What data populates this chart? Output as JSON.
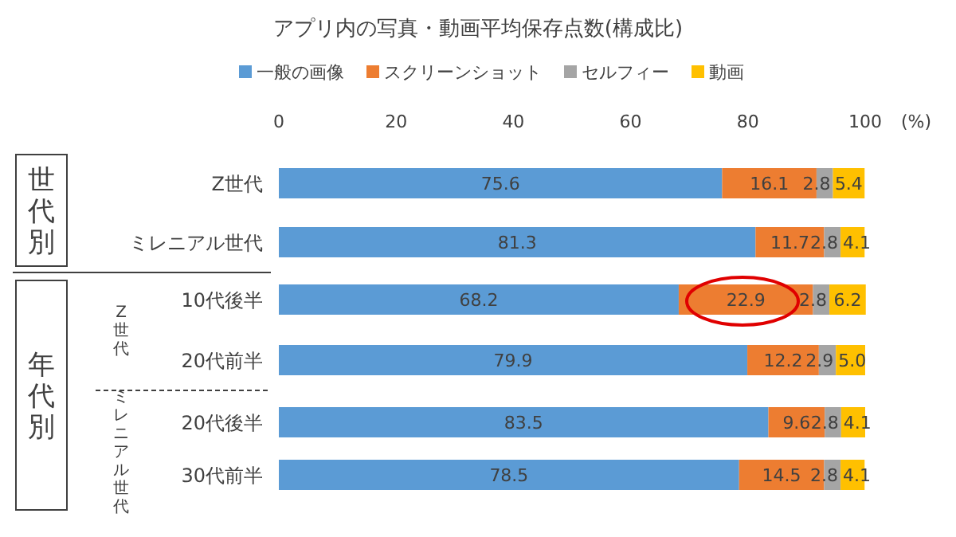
{
  "chart_data": {
    "type": "bar",
    "orientation": "horizontal",
    "stacked": true,
    "title": "アプリ内の写真・動画平均保存点数(構成比)",
    "xlabel": "(%)",
    "categories": [
      "Z世代",
      "ミレニアル世代",
      "10代後半",
      "20代前半",
      "20代後半",
      "30代前半"
    ],
    "xlim": [
      0,
      100
    ],
    "xticks": [
      0,
      20,
      40,
      60,
      80,
      100
    ],
    "legend": "top",
    "grid": false,
    "annotations": [
      "世代別",
      "年代別",
      "Z世代",
      "ミレニアル世代"
    ],
    "series": [
      {
        "name": "一般の画像",
        "color": "#5b9bd5",
        "values": [
          75.6,
          81.3,
          68.2,
          79.9,
          83.5,
          78.5
        ],
        "value_labels": [
          "75.6",
          "81.3",
          "68.2",
          "79.9",
          "83.5",
          "78.5"
        ]
      },
      {
        "name": "スクリーンショット",
        "color": "#ed7d31",
        "values": [
          16.1,
          11.7,
          22.9,
          12.2,
          9.6,
          14.5
        ],
        "value_labels": [
          "16.1",
          "11.7",
          "22.9",
          "12.2",
          "9.6",
          "14.5"
        ]
      },
      {
        "name": "セルフィー",
        "color": "#a5a5a5",
        "values": [
          2.8,
          2.8,
          2.8,
          2.9,
          2.8,
          2.8
        ],
        "value_labels": [
          "2.8",
          "2.8",
          "2.8",
          "2.9",
          "2.8",
          "2.8"
        ]
      },
      {
        "name": "動画",
        "color": "#ffc000",
        "values": [
          5.4,
          4.1,
          6.2,
          5.0,
          4.1,
          4.1
        ],
        "value_labels": [
          "5.4",
          "4.1",
          "6.2",
          "5.0",
          "4.1",
          "4.1"
        ]
      }
    ]
  }
}
